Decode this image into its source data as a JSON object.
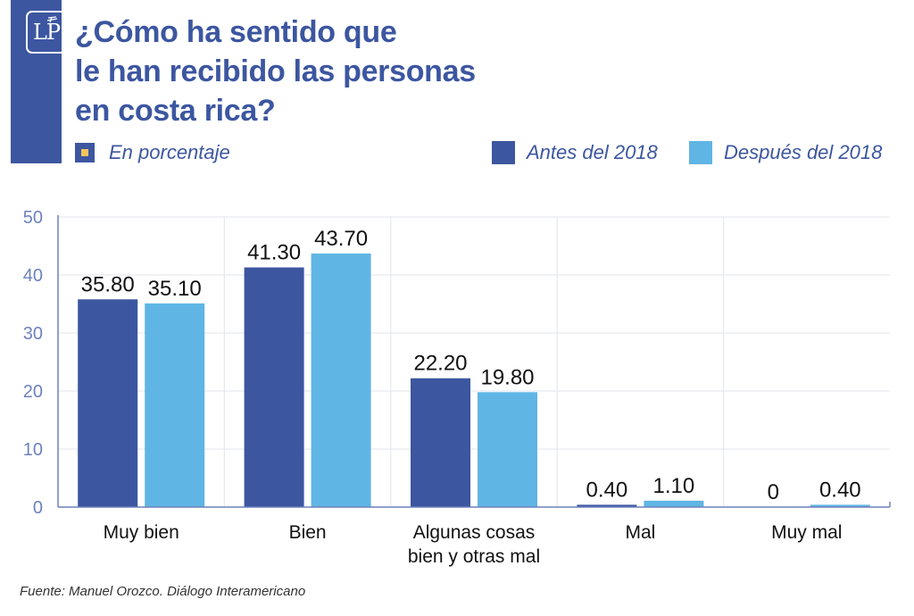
{
  "header": {
    "logo_text": "LP",
    "title_lines": [
      "¿Cómo ha sentido que",
      "le han recibido las personas",
      "en costa rica?"
    ],
    "unit_label": "En porcentaje"
  },
  "colors": {
    "brand": "#3c56a0",
    "series_before": "#3c56a0",
    "series_after": "#5fb5e3",
    "accent": "#f2c45c",
    "grid": "#e6e9ef",
    "axis": "#6d82bd"
  },
  "source": "Fuente: Manuel Orozco. Diálogo Interamericano",
  "chart_data": {
    "type": "bar",
    "title": "¿Cómo ha sentido que le han recibido las personas en costa rica?",
    "subtitle": "En porcentaje",
    "xlabel": "",
    "ylabel": "",
    "ylim": [
      0,
      50
    ],
    "yticks": [
      0,
      10,
      20,
      30,
      40,
      50
    ],
    "grid": true,
    "legend_position": "top-right",
    "categories": [
      [
        "Muy bien"
      ],
      [
        "Bien"
      ],
      [
        "Algunas cosas",
        "bien y otras mal"
      ],
      [
        "Mal"
      ],
      [
        "Muy mal"
      ]
    ],
    "series": [
      {
        "name": "Antes del 2018",
        "values": [
          35.8,
          41.3,
          22.2,
          0.4,
          0
        ],
        "labels": [
          "35.80",
          "41.30",
          "22.20",
          "0.40",
          "0"
        ]
      },
      {
        "name": "Después del 2018",
        "values": [
          35.1,
          43.7,
          19.8,
          1.1,
          0.4
        ],
        "labels": [
          "35.10",
          "43.70",
          "19.80",
          "1.10",
          "0.40"
        ]
      }
    ]
  }
}
